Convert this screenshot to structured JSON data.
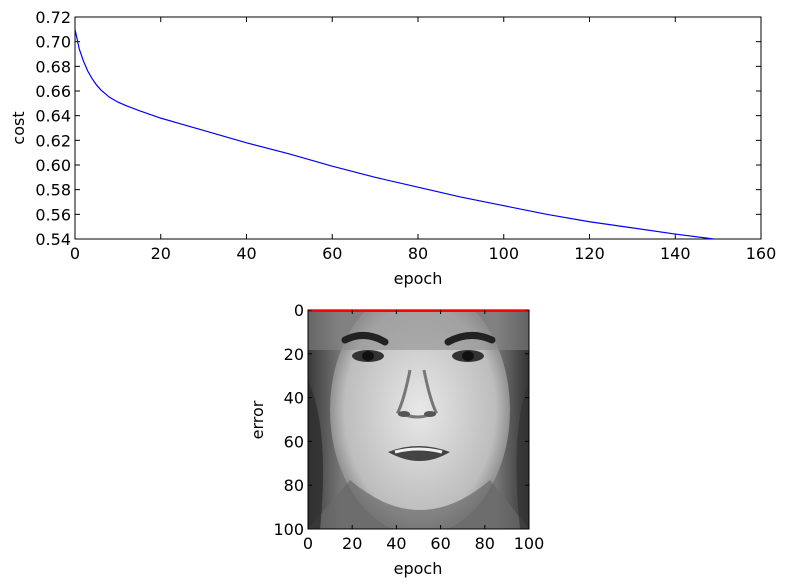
{
  "chart_data": [
    {
      "type": "line",
      "xlabel": "epoch",
      "ylabel": "cost",
      "xlim": [
        0,
        160
      ],
      "ylim": [
        0.54,
        0.72
      ],
      "xticks": [
        "0",
        "20",
        "40",
        "60",
        "80",
        "100",
        "120",
        "140",
        "160"
      ],
      "yticks": [
        "0.54",
        "0.56",
        "0.58",
        "0.60",
        "0.62",
        "0.64",
        "0.66",
        "0.68",
        "0.70",
        "0.72"
      ],
      "grid": false,
      "series": [
        {
          "color": "#0000ff",
          "x": [
            0,
            1,
            2,
            3,
            4,
            5,
            6,
            8,
            10,
            12,
            15,
            20,
            25,
            30,
            40,
            50,
            60,
            70,
            80,
            90,
            100,
            110,
            120,
            130,
            140,
            149
          ],
          "y": [
            0.71,
            0.694,
            0.684,
            0.676,
            0.67,
            0.665,
            0.661,
            0.655,
            0.651,
            0.648,
            0.644,
            0.638,
            0.633,
            0.628,
            0.618,
            0.609,
            0.599,
            0.59,
            0.582,
            0.574,
            0.567,
            0.56,
            0.554,
            0.549,
            0.544,
            0.54
          ]
        }
      ]
    },
    {
      "type": "image",
      "xlabel": "epoch",
      "ylabel": "error",
      "xlim": [
        0,
        100
      ],
      "ylim": [
        100,
        0
      ],
      "xticks": [
        "0",
        "20",
        "40",
        "60",
        "80",
        "100"
      ],
      "yticks": [
        "0",
        "20",
        "40",
        "60",
        "80",
        "100"
      ],
      "image": "grayscale-face",
      "overlay_line": {
        "color": "#ff0000",
        "x": [
          0,
          100
        ],
        "y": [
          0,
          0
        ]
      }
    }
  ]
}
